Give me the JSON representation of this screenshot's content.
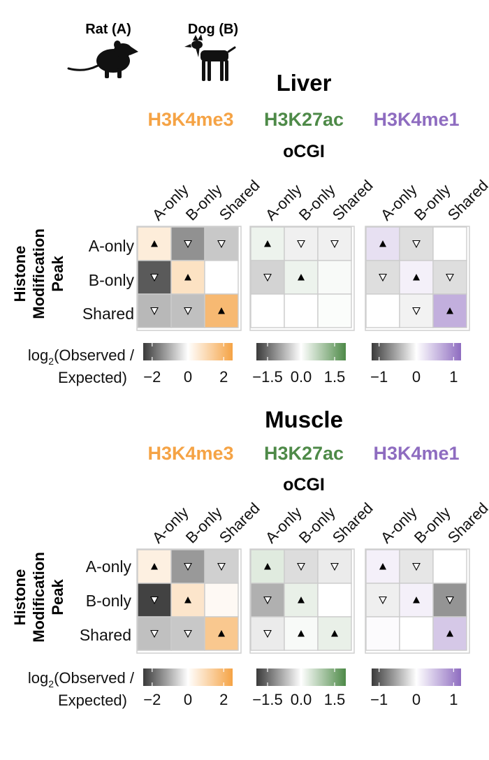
{
  "species": {
    "a_label": "Rat (A)",
    "b_label": "Dog (B)",
    "a_icon": "rat-silhouette-icon",
    "b_icon": "dog-silhouette-icon"
  },
  "colors": {
    "H3K4me3": "#F5A345",
    "H3K27ac": "#4E8A48",
    "H3K4me1": "#8E6CC0",
    "negative": "#3a3a3a",
    "neutral": "#ffffff",
    "cell_border": "#cccccc",
    "panel_border": "#cfcfcf"
  },
  "shared_text": {
    "column_labels": [
      "A-only",
      "B-only",
      "Shared"
    ],
    "row_labels": [
      "A-only",
      "B-only",
      "Shared"
    ],
    "y_axis_title_line1": "Histone",
    "y_axis_title_line2": "Modification",
    "y_axis_title_line3": "Peak",
    "legend_label_line1": "log",
    "legend_label_sub": "2",
    "legend_label_line1_rest": "(Observed /",
    "legend_label_line2": "Expected)"
  },
  "chart_data": [
    {
      "type": "heatmap",
      "title": "Liver",
      "subtitle": "oCGI",
      "xlabel": "",
      "ylabel": "Histone Modification Peak",
      "panels": [
        {
          "mark": "H3K4me3",
          "color_key": "H3K4me3",
          "range": [
            -2.5,
            2.5
          ],
          "ticks": [
            "−2",
            "0",
            "2"
          ],
          "tick_values": [
            -2,
            0,
            2
          ],
          "values": [
            [
              0.5,
              -1.4,
              -0.7
            ],
            [
              -2.1,
              0.8,
              0.0
            ],
            [
              -0.9,
              -0.8,
              1.9
            ]
          ],
          "markers": [
            [
              "up",
              "down",
              "down"
            ],
            [
              "down",
              "up",
              ""
            ],
            [
              "down",
              "down",
              "up"
            ]
          ]
        },
        {
          "mark": "H3K27ac",
          "color_key": "H3K27ac",
          "range": [
            -2.0,
            2.0
          ],
          "ticks": [
            "−1.5",
            "0.0",
            "1.5"
          ],
          "tick_values": [
            -1.5,
            0.0,
            1.5
          ],
          "values": [
            [
              0.2,
              -0.15,
              -0.15
            ],
            [
              -0.45,
              0.2,
              0.08
            ],
            [
              0.0,
              0.0,
              0.04
            ]
          ],
          "markers": [
            [
              "up",
              "down",
              "down"
            ],
            [
              "down",
              "up",
              ""
            ],
            [
              "",
              "",
              ""
            ]
          ]
        },
        {
          "mark": "H3K4me1",
          "color_key": "H3K4me1",
          "range": [
            -1.2,
            1.2
          ],
          "ticks": [
            "−1",
            "0",
            "1"
          ],
          "tick_values": [
            -1,
            0,
            1
          ],
          "values": [
            [
              0.25,
              -0.2,
              0.0
            ],
            [
              -0.2,
              0.12,
              -0.2
            ],
            [
              0.0,
              -0.08,
              0.65
            ]
          ],
          "markers": [
            [
              "up",
              "down",
              ""
            ],
            [
              "down",
              "up",
              "down"
            ],
            [
              "",
              "down",
              "up"
            ]
          ]
        }
      ]
    },
    {
      "type": "heatmap",
      "title": "Muscle",
      "subtitle": "oCGI",
      "xlabel": "",
      "ylabel": "Histone Modification Peak",
      "panels": [
        {
          "mark": "H3K4me3",
          "color_key": "H3K4me3",
          "range": [
            -2.5,
            2.5
          ],
          "ticks": [
            "−2",
            "0",
            "2"
          ],
          "tick_values": [
            -2,
            0,
            2
          ],
          "values": [
            [
              0.4,
              -1.3,
              -0.6
            ],
            [
              -2.4,
              0.7,
              0.15
            ],
            [
              -0.8,
              -0.7,
              1.5
            ]
          ],
          "markers": [
            [
              "up",
              "down",
              "down"
            ],
            [
              "down",
              "up",
              ""
            ],
            [
              "down",
              "down",
              "up"
            ]
          ]
        },
        {
          "mark": "H3K27ac",
          "color_key": "H3K27ac",
          "range": [
            -2.0,
            2.0
          ],
          "ticks": [
            "−1.5",
            "0.0",
            "1.5"
          ],
          "tick_values": [
            -1.5,
            0.0,
            1.5
          ],
          "values": [
            [
              0.35,
              -0.35,
              -0.2
            ],
            [
              -0.8,
              0.25,
              0.0
            ],
            [
              -0.2,
              0.08,
              0.25
            ]
          ],
          "markers": [
            [
              "up",
              "down",
              "down"
            ],
            [
              "down",
              "up",
              ""
            ],
            [
              "down",
              "up",
              "up"
            ]
          ]
        },
        {
          "mark": "H3K4me1",
          "color_key": "H3K4me1",
          "range": [
            -1.2,
            1.2
          ],
          "ticks": [
            "−1",
            "0",
            "1"
          ],
          "tick_values": [
            -1,
            0,
            1
          ],
          "values": [
            [
              0.12,
              -0.15,
              0.0
            ],
            [
              -0.1,
              0.12,
              -0.65
            ],
            [
              0.03,
              0.0,
              0.45
            ]
          ],
          "markers": [
            [
              "up",
              "down",
              ""
            ],
            [
              "down",
              "up",
              "down"
            ],
            [
              "",
              "",
              "up"
            ]
          ]
        }
      ]
    }
  ]
}
